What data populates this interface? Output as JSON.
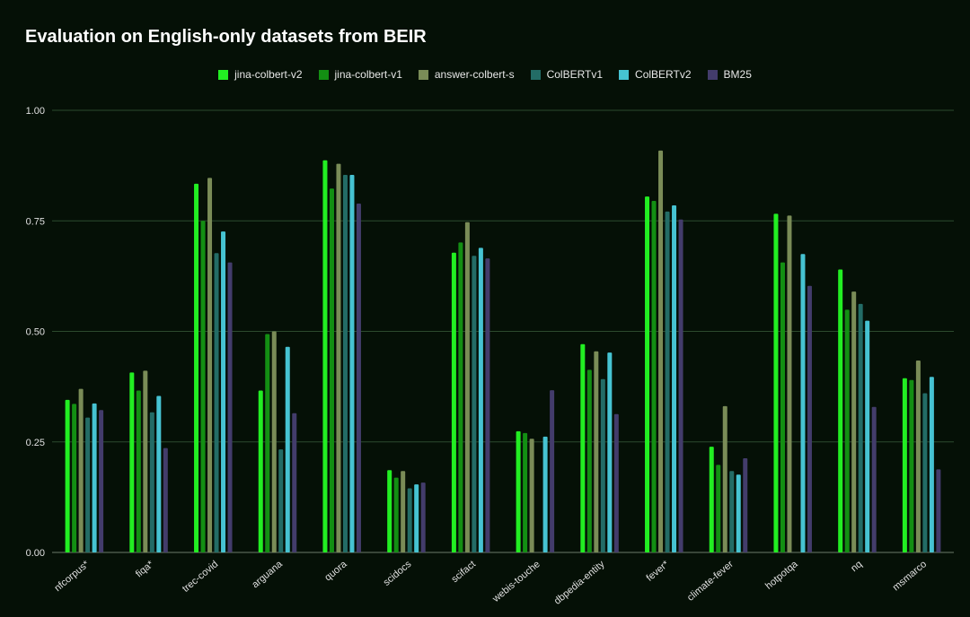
{
  "chart_data": {
    "type": "bar",
    "title": "Evaluation on English-only datasets from BEIR",
    "xlabel": "",
    "ylabel": "",
    "ylim": [
      0,
      1.0
    ],
    "y_ticks": [
      "0.00",
      "0.25",
      "0.50",
      "0.75",
      "1.00"
    ],
    "grid": true,
    "legend_position": "top-center",
    "categories": [
      "nfcorpus*",
      "fiqa*",
      "trec-covid",
      "arguana",
      "quora",
      "scidocs",
      "scifact",
      "webis-touche",
      "dbpedia-entity",
      "fever*",
      "climate-fever",
      "hotpotqa",
      "nq",
      "msmarco"
    ],
    "series": [
      {
        "name": "jina-colbert-v2",
        "color": "#22ee22",
        "values": [
          0.345,
          0.407,
          0.834,
          0.366,
          0.887,
          0.186,
          0.678,
          0.274,
          0.471,
          0.805,
          0.239,
          0.766,
          0.64,
          0.394
        ]
      },
      {
        "name": "jina-colbert-v1",
        "color": "#138f13",
        "values": [
          0.336,
          0.366,
          0.75,
          0.494,
          0.823,
          0.169,
          0.701,
          0.27,
          0.413,
          0.795,
          0.198,
          0.656,
          0.549,
          0.39
        ]
      },
      {
        "name": "answer-colbert-s",
        "color": "#7a8c57",
        "values": [
          0.37,
          0.411,
          0.847,
          0.5,
          0.879,
          0.184,
          0.747,
          0.257,
          0.455,
          0.909,
          0.331,
          0.762,
          0.59,
          0.434
        ]
      },
      {
        "name": "ColBERTv1",
        "color": "#236c66",
        "values": [
          0.305,
          0.317,
          0.677,
          0.233,
          0.854,
          0.145,
          0.671,
          0.0,
          0.392,
          0.771,
          0.184,
          0.0,
          0.562,
          0.36
        ]
      },
      {
        "name": "ColBERTv2",
        "color": "#46c3d2",
        "values": [
          0.337,
          0.354,
          0.726,
          0.465,
          0.854,
          0.154,
          0.689,
          0.262,
          0.452,
          0.785,
          0.176,
          0.675,
          0.524,
          0.397
        ]
      },
      {
        "name": "BM25",
        "color": "#433c6b",
        "values": [
          0.322,
          0.236,
          0.656,
          0.315,
          0.789,
          0.158,
          0.665,
          0.367,
          0.313,
          0.753,
          0.213,
          0.603,
          0.329,
          0.188
        ]
      }
    ]
  }
}
